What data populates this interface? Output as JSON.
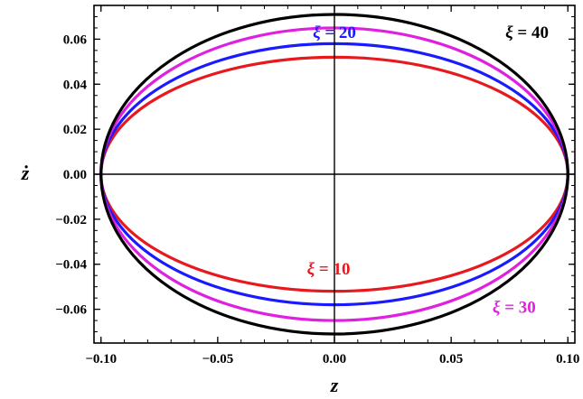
{
  "chart_data": {
    "type": "line",
    "title": "",
    "xlabel": "z",
    "ylabel": "ż",
    "xlim": [
      -0.103,
      0.103
    ],
    "ylim": [
      -0.075,
      0.075
    ],
    "grid": false,
    "frame": true,
    "center_axes": true,
    "x_ticks": [
      -0.1,
      -0.05,
      0.0,
      0.05,
      0.1
    ],
    "x_tick_labels": [
      "−0.10",
      "−0.05",
      "0.00",
      "0.05",
      "0.10"
    ],
    "y_ticks": [
      0.06,
      0.04,
      0.02,
      0.0,
      -0.02,
      -0.04,
      -0.06
    ],
    "y_tick_labels": [
      "0.06",
      "0.04",
      "0.02",
      "0.00",
      "−0.02",
      "−0.04",
      "−0.06"
    ],
    "series": [
      {
        "name": "ξ = 10",
        "color": "#e8191e",
        "amplitude_z": 0.1,
        "amplitude_zdot": 0.052
      },
      {
        "name": "ξ = 20",
        "color": "#1a1aff",
        "amplitude_z": 0.1,
        "amplitude_zdot": 0.058
      },
      {
        "name": "ξ = 30",
        "color": "#e020e0",
        "amplitude_z": 0.1,
        "amplitude_zdot": 0.065
      },
      {
        "name": "ξ = 40",
        "color": "#000000",
        "amplitude_z": 0.1,
        "amplitude_zdot": 0.071
      }
    ],
    "annotations": [
      {
        "symbol": "ξ",
        "rest": " = 10",
        "series": "ξ = 10",
        "color": "#e8191e",
        "x": -0.0025,
        "y": -0.0445
      },
      {
        "symbol": "ξ",
        "rest": " = 20",
        "series": "ξ = 20",
        "color": "#1a1aff",
        "x": 0.0,
        "y": 0.0605
      },
      {
        "symbol": "ξ",
        "rest": " = 30",
        "series": "ξ = 30",
        "color": "#e020e0",
        "x": 0.077,
        "y": -0.0615
      },
      {
        "symbol": "ξ",
        "rest": " = 40",
        "series": "ξ = 40",
        "color": "#000000",
        "x": 0.0825,
        "y": 0.0605
      }
    ]
  }
}
